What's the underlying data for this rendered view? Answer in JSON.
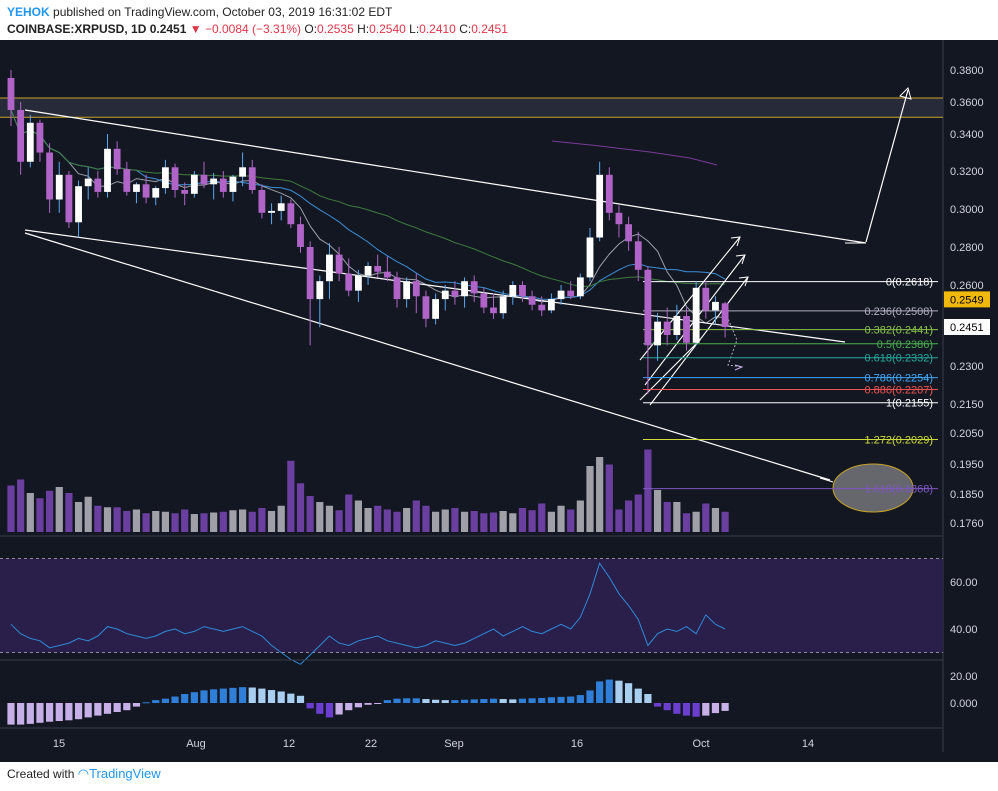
{
  "header": {
    "author": "YEHOK",
    "published": "published on TradingView.com, October 03, 2019 16:31:02 EDT",
    "symbol": "COINBASE:XRPUSD, 1D",
    "last": "0.2451",
    "change": "▼ −0.0084 (−3.31%)",
    "o_label": "O:",
    "o": "0.2535",
    "h_label": "H:",
    "h": "0.2540",
    "l_label": "L:",
    "l": "0.2410",
    "c_label": "C:",
    "c": "0.2451"
  },
  "footer": {
    "created": "Created with",
    "brand": "TradingView"
  },
  "colors": {
    "background": "#131722",
    "bull": "#ffffff",
    "bear": "#b064c8",
    "bull_wick": "#5aa7f0",
    "volume_up": "#a0a0a8",
    "volume_down": "#6a3fa0",
    "rsi_line": "#2e8bd8",
    "rsi_fill": "#2a1e4a",
    "macd_up": "#2f7fd8",
    "macd_light": "#a8cff0",
    "macd_down": "#6a3fd0",
    "macd_down_light": "#c7b0e8",
    "fib_yellow": "#c9a227",
    "trend": "#ffffff",
    "price_tag": "#f0b90b"
  },
  "chart_data": {
    "type": "candlestick",
    "y_axis_ticks": [
      "0.3800",
      "0.3600",
      "0.3400",
      "0.3200",
      "0.3000",
      "0.2800",
      "0.2600",
      "0.2451",
      "0.2300",
      "0.2150",
      "0.2050",
      "0.1950",
      "0.1850",
      "0.1760"
    ],
    "y_axis_values": [
      0.38,
      0.36,
      0.34,
      0.32,
      0.3,
      0.28,
      0.26,
      0.2451,
      0.23,
      0.215,
      0.205,
      0.195,
      0.185,
      0.176
    ],
    "x_axis_ticks": [
      "15",
      "Aug",
      "12",
      "22",
      "Sep",
      "16",
      "Oct",
      "14"
    ],
    "price_tags": [
      {
        "label": "0.2549",
        "value": 0.2549
      },
      {
        "label": "0.2451",
        "value": 0.2451
      }
    ],
    "fibonacci": [
      {
        "label": "0(0.2618)",
        "value": 0.2618,
        "color": "#ffffff"
      },
      {
        "label": "0.236(0.2508)",
        "value": 0.2508,
        "color": "#b0b0c0"
      },
      {
        "label": "0.382(0.2441)",
        "value": 0.2441,
        "color": "#8bc34a"
      },
      {
        "label": "0.5(0.2386)",
        "value": 0.2386,
        "color": "#4caf50"
      },
      {
        "label": "0.618(0.2332)",
        "value": 0.2332,
        "color": "#26a69a"
      },
      {
        "label": "0.786(0.2254)",
        "value": 0.2254,
        "color": "#42a5f5"
      },
      {
        "label": "0.886(0.2207)",
        "value": 0.2207,
        "color": "#ef5350"
      },
      {
        "label": "1(0.2155)",
        "value": 0.2155,
        "color": "#ffffff"
      },
      {
        "label": "1.272(0.2029)",
        "value": 0.2029,
        "color": "#cddc39"
      },
      {
        "label": "1.618(0.1868)",
        "value": 0.1868,
        "color": "#7e57c2"
      }
    ],
    "resistance_zone": [
      0.3505,
      0.3625
    ],
    "candles": [
      [
        0.375,
        0.38,
        0.345,
        0.355
      ],
      [
        0.355,
        0.36,
        0.318,
        0.325
      ],
      [
        0.325,
        0.352,
        0.322,
        0.347
      ],
      [
        0.347,
        0.349,
        0.325,
        0.33
      ],
      [
        0.33,
        0.335,
        0.298,
        0.305
      ],
      [
        0.305,
        0.325,
        0.298,
        0.318
      ],
      [
        0.318,
        0.32,
        0.29,
        0.293
      ],
      [
        0.293,
        0.315,
        0.285,
        0.312
      ],
      [
        0.312,
        0.322,
        0.305,
        0.316
      ],
      [
        0.316,
        0.32,
        0.306,
        0.309
      ],
      [
        0.309,
        0.34,
        0.306,
        0.332
      ],
      [
        0.332,
        0.336,
        0.318,
        0.321
      ],
      [
        0.321,
        0.325,
        0.307,
        0.309
      ],
      [
        0.309,
        0.314,
        0.303,
        0.313
      ],
      [
        0.313,
        0.318,
        0.303,
        0.306
      ],
      [
        0.306,
        0.312,
        0.302,
        0.311
      ],
      [
        0.311,
        0.326,
        0.308,
        0.322
      ],
      [
        0.322,
        0.324,
        0.306,
        0.31
      ],
      [
        0.31,
        0.314,
        0.302,
        0.308
      ],
      [
        0.308,
        0.32,
        0.306,
        0.318
      ],
      [
        0.318,
        0.325,
        0.311,
        0.313
      ],
      [
        0.313,
        0.319,
        0.305,
        0.316
      ],
      [
        0.316,
        0.32,
        0.306,
        0.309
      ],
      [
        0.309,
        0.318,
        0.304,
        0.317
      ],
      [
        0.317,
        0.33,
        0.312,
        0.322
      ],
      [
        0.322,
        0.326,
        0.308,
        0.31
      ],
      [
        0.31,
        0.313,
        0.295,
        0.298
      ],
      [
        0.298,
        0.303,
        0.292,
        0.299
      ],
      [
        0.299,
        0.307,
        0.294,
        0.303
      ],
      [
        0.303,
        0.305,
        0.29,
        0.292
      ],
      [
        0.292,
        0.296,
        0.277,
        0.28
      ],
      [
        0.28,
        0.283,
        0.238,
        0.255
      ],
      [
        0.255,
        0.265,
        0.245,
        0.262
      ],
      [
        0.262,
        0.282,
        0.255,
        0.276
      ],
      [
        0.276,
        0.28,
        0.262,
        0.266
      ],
      [
        0.266,
        0.274,
        0.256,
        0.258
      ],
      [
        0.258,
        0.268,
        0.254,
        0.265
      ],
      [
        0.265,
        0.272,
        0.26,
        0.27
      ],
      [
        0.27,
        0.276,
        0.264,
        0.267
      ],
      [
        0.267,
        0.275,
        0.262,
        0.264
      ],
      [
        0.264,
        0.267,
        0.252,
        0.255
      ],
      [
        0.255,
        0.264,
        0.252,
        0.262
      ],
      [
        0.262,
        0.266,
        0.25,
        0.256
      ],
      [
        0.256,
        0.258,
        0.245,
        0.248
      ],
      [
        0.248,
        0.257,
        0.246,
        0.255
      ],
      [
        0.255,
        0.26,
        0.251,
        0.258
      ],
      [
        0.258,
        0.262,
        0.253,
        0.256
      ],
      [
        0.256,
        0.264,
        0.252,
        0.262
      ],
      [
        0.262,
        0.265,
        0.254,
        0.257
      ],
      [
        0.257,
        0.259,
        0.25,
        0.252
      ],
      [
        0.252,
        0.257,
        0.248,
        0.25
      ],
      [
        0.25,
        0.258,
        0.248,
        0.256
      ],
      [
        0.256,
        0.262,
        0.253,
        0.26
      ],
      [
        0.26,
        0.262,
        0.254,
        0.256
      ],
      [
        0.256,
        0.258,
        0.251,
        0.253
      ],
      [
        0.253,
        0.256,
        0.249,
        0.251
      ],
      [
        0.251,
        0.257,
        0.25,
        0.255
      ],
      [
        0.255,
        0.26,
        0.253,
        0.258
      ],
      [
        0.258,
        0.262,
        0.255,
        0.256
      ],
      [
        0.256,
        0.266,
        0.255,
        0.264
      ],
      [
        0.264,
        0.29,
        0.262,
        0.285
      ],
      [
        0.285,
        0.325,
        0.283,
        0.318
      ],
      [
        0.318,
        0.322,
        0.294,
        0.298
      ],
      [
        0.298,
        0.302,
        0.285,
        0.292
      ],
      [
        0.292,
        0.296,
        0.278,
        0.283
      ],
      [
        0.283,
        0.288,
        0.262,
        0.268
      ],
      [
        0.268,
        0.27,
        0.219,
        0.238
      ],
      [
        0.238,
        0.25,
        0.232,
        0.247
      ],
      [
        0.247,
        0.252,
        0.238,
        0.242
      ],
      [
        0.242,
        0.253,
        0.24,
        0.249
      ],
      [
        0.249,
        0.252,
        0.236,
        0.239
      ],
      [
        0.239,
        0.262,
        0.238,
        0.259
      ],
      [
        0.259,
        0.262,
        0.248,
        0.251
      ],
      [
        0.251,
        0.256,
        0.246,
        0.254
      ],
      [
        0.2535,
        0.254,
        0.241,
        0.2451
      ]
    ],
    "volume": [
      0.62,
      0.7,
      0.52,
      0.45,
      0.55,
      0.6,
      0.52,
      0.4,
      0.47,
      0.35,
      0.33,
      0.33,
      0.28,
      0.3,
      0.25,
      0.28,
      0.27,
      0.25,
      0.3,
      0.24,
      0.25,
      0.26,
      0.27,
      0.29,
      0.3,
      0.27,
      0.32,
      0.28,
      0.35,
      0.95,
      0.65,
      0.48,
      0.4,
      0.35,
      0.29,
      0.5,
      0.42,
      0.32,
      0.35,
      0.3,
      0.27,
      0.32,
      0.42,
      0.35,
      0.27,
      0.3,
      0.32,
      0.27,
      0.28,
      0.25,
      0.26,
      0.28,
      0.25,
      0.32,
      0.29,
      0.38,
      0.27,
      0.35,
      0.3,
      0.42,
      0.88,
      1.0,
      0.9,
      0.3,
      0.42,
      0.5,
      1.1,
      0.56,
      0.4,
      0.4,
      0.25,
      0.27,
      0.38,
      0.32,
      0.27
    ],
    "rsi": {
      "levels": [
        "60.00",
        "40.00",
        "20.00"
      ],
      "upper": 70,
      "lower": 30,
      "values": [
        42,
        38,
        36,
        35,
        32,
        33,
        34,
        36,
        35,
        37,
        41,
        40,
        38,
        37,
        36,
        37,
        39,
        40,
        38,
        39,
        41,
        40,
        39,
        40,
        41,
        39,
        37,
        33,
        30,
        27,
        25,
        29,
        33,
        37,
        34,
        33,
        35,
        36,
        37,
        35,
        34,
        33,
        32,
        33,
        35,
        34,
        33,
        34,
        36,
        38,
        40,
        37,
        39,
        41,
        39,
        38,
        40,
        42,
        40,
        45,
        55,
        68,
        62,
        55,
        50,
        44,
        33,
        38,
        40,
        39,
        41,
        38,
        46,
        42,
        40
      ]
    },
    "macd": {
      "level": "0.000",
      "values": [
        -0.006,
        -0.006,
        -0.0058,
        -0.0055,
        -0.0052,
        -0.005,
        -0.0048,
        -0.0045,
        -0.004,
        -0.0035,
        -0.003,
        -0.0025,
        -0.002,
        -0.001,
        0.0002,
        0.0008,
        0.0012,
        0.0018,
        0.0025,
        0.003,
        0.0035,
        0.0038,
        0.004,
        0.0042,
        0.0044,
        0.0043,
        0.004,
        0.0036,
        0.0032,
        0.0026,
        0.002,
        -0.0015,
        -0.003,
        -0.004,
        -0.0032,
        -0.002,
        -0.0012,
        -0.0005,
        -0.0002,
        0.0008,
        0.0012,
        0.0013,
        0.0013,
        0.0011,
        0.0009,
        0.0008,
        0.0008,
        0.0009,
        0.001,
        0.0011,
        0.0012,
        0.0011,
        0.001,
        0.0012,
        0.0013,
        0.0014,
        0.0016,
        0.0017,
        0.0018,
        0.0022,
        0.0035,
        0.006,
        0.0065,
        0.0062,
        0.0055,
        0.004,
        0.0025,
        -0.001,
        -0.002,
        -0.003,
        -0.0035,
        -0.0038,
        -0.0035,
        -0.0028,
        -0.0022
      ]
    }
  }
}
